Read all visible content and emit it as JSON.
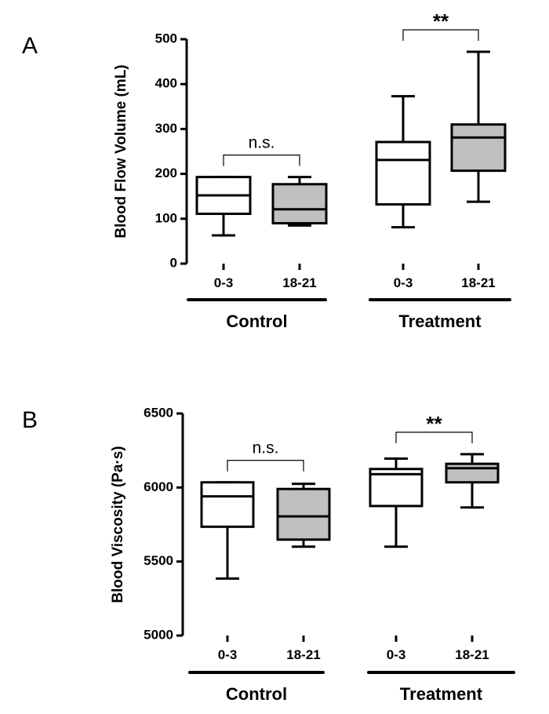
{
  "chart_data": [
    {
      "type": "boxplot",
      "panel": "A",
      "ylabel": "Blood Flow Volume (mL)",
      "ylim": [
        0,
        500
      ],
      "yticks": [
        0,
        100,
        200,
        300,
        400,
        500
      ],
      "groups": [
        {
          "label": "Control",
          "categories": [
            "0-3",
            "18-21"
          ]
        },
        {
          "label": "Treatment",
          "categories": [
            "0-3",
            "18-21"
          ]
        }
      ],
      "boxes": [
        {
          "group": "Control",
          "category": "0-3",
          "fill": "#ffffff",
          "min": 63,
          "q1": 111,
          "median": 152,
          "q3": 193,
          "max": 193
        },
        {
          "group": "Control",
          "category": "18-21",
          "fill": "#c0c0c0",
          "min": 85,
          "q1": 90,
          "median": 121,
          "q3": 177,
          "max": 193
        },
        {
          "group": "Treatment",
          "category": "0-3",
          "fill": "#ffffff",
          "min": 81,
          "q1": 132,
          "median": 231,
          "q3": 271,
          "max": 373
        },
        {
          "group": "Treatment",
          "category": "18-21",
          "fill": "#c0c0c0",
          "min": 138,
          "q1": 207,
          "median": 281,
          "q3": 310,
          "max": 472
        }
      ],
      "annotations": [
        {
          "group": "Control",
          "text": "n.s."
        },
        {
          "group": "Treatment",
          "text": "**"
        }
      ]
    },
    {
      "type": "boxplot",
      "panel": "B",
      "ylabel": "Blood Viscosity (Pa·s)",
      "ylim": [
        5000,
        6500
      ],
      "yticks": [
        5000,
        5500,
        6000,
        6500
      ],
      "groups": [
        {
          "label": "Control",
          "categories": [
            "0-3",
            "18-21"
          ]
        },
        {
          "label": "Treatment",
          "categories": [
            "0-3",
            "18-21"
          ]
        }
      ],
      "boxes": [
        {
          "group": "Control",
          "category": "0-3",
          "fill": "#ffffff",
          "min": 5385,
          "q1": 5735,
          "median": 5940,
          "q3": 6035,
          "max": 6035
        },
        {
          "group": "Control",
          "category": "18-21",
          "fill": "#c0c0c0",
          "min": 5600,
          "q1": 5648,
          "median": 5805,
          "q3": 5990,
          "max": 6025
        },
        {
          "group": "Treatment",
          "category": "0-3",
          "fill": "#ffffff",
          "min": 5600,
          "q1": 5875,
          "median": 6090,
          "q3": 6125,
          "max": 6195
        },
        {
          "group": "Treatment",
          "category": "18-21",
          "fill": "#c0c0c0",
          "min": 5865,
          "q1": 6035,
          "median": 6130,
          "q3": 6160,
          "max": 6225
        }
      ],
      "annotations": [
        {
          "group": "Control",
          "text": "n.s."
        },
        {
          "group": "Treatment",
          "text": "**"
        }
      ]
    }
  ]
}
